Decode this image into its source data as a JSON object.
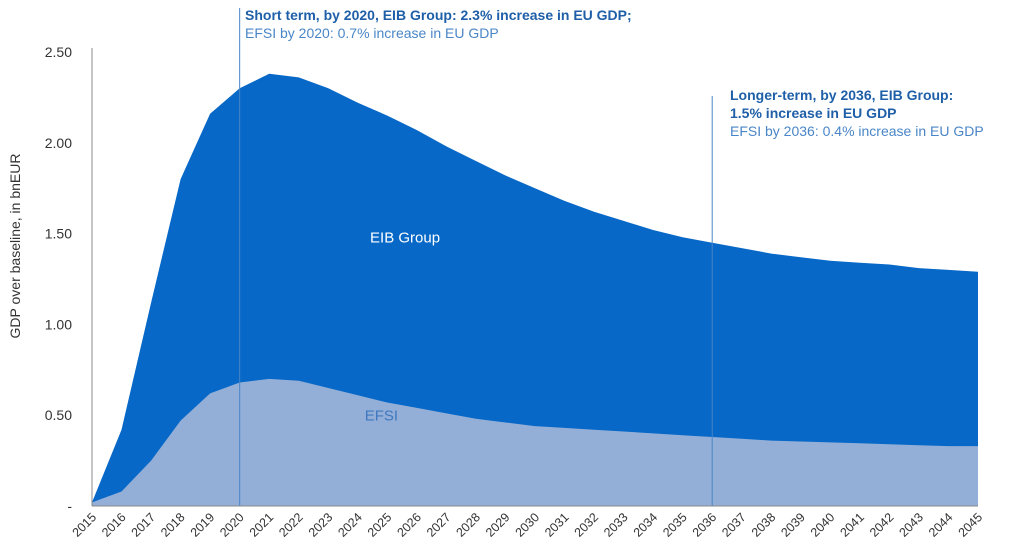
{
  "chart_data": {
    "type": "area",
    "stacked": true,
    "x": [
      2015,
      2016,
      2017,
      2018,
      2019,
      2020,
      2021,
      2022,
      2023,
      2024,
      2025,
      2026,
      2027,
      2028,
      2029,
      2030,
      2031,
      2032,
      2033,
      2034,
      2035,
      2036,
      2037,
      2038,
      2039,
      2040,
      2041,
      2042,
      2043,
      2044,
      2045
    ],
    "series": [
      {
        "name": "EFSI",
        "color": "#93afd7",
        "values": [
          0.02,
          0.08,
          0.25,
          0.47,
          0.62,
          0.68,
          0.7,
          0.69,
          0.65,
          0.61,
          0.57,
          0.54,
          0.51,
          0.48,
          0.46,
          0.44,
          0.43,
          0.42,
          0.41,
          0.4,
          0.39,
          0.38,
          0.37,
          0.36,
          0.355,
          0.35,
          0.345,
          0.34,
          0.335,
          0.33,
          0.33
        ]
      },
      {
        "name": "EIB Group",
        "color": "#0768c7",
        "values_total": [
          0.02,
          0.42,
          1.12,
          1.8,
          2.16,
          2.3,
          2.38,
          2.36,
          2.3,
          2.22,
          2.15,
          2.07,
          1.98,
          1.9,
          1.82,
          1.75,
          1.68,
          1.62,
          1.57,
          1.52,
          1.48,
          1.45,
          1.42,
          1.39,
          1.37,
          1.35,
          1.34,
          1.33,
          1.31,
          1.3,
          1.29
        ]
      }
    ],
    "ylabel": "GDP over baseline, in bnEUR",
    "ylim": [
      0,
      2.5
    ],
    "yticks": [
      {
        "value": 0,
        "label": "-"
      },
      {
        "value": 0.5,
        "label": "0.50"
      },
      {
        "value": 1.0,
        "label": "1.00"
      },
      {
        "value": 1.5,
        "label": "1.50"
      },
      {
        "value": 2.0,
        "label": "2.00"
      },
      {
        "value": 2.5,
        "label": "2.50"
      }
    ],
    "xtick_labels": [
      "2015",
      "2016",
      "2017",
      "2018",
      "2019",
      "2020",
      "2021",
      "2022",
      "2023",
      "2024",
      "2025",
      "2026",
      "2027",
      "2028",
      "2029",
      "2030",
      "2031",
      "2032",
      "2033",
      "2034",
      "2035",
      "2036",
      "2037",
      "2038",
      "2039",
      "2040",
      "2041",
      "2042",
      "2043",
      "2044",
      "2045"
    ],
    "series_labels": {
      "eib": "EIB Group",
      "efsi": "EFSI"
    },
    "markers": [
      2020,
      2036
    ],
    "grid": false,
    "legend": "none"
  },
  "annotations": {
    "short_strong": "Short term, by 2020, EIB Group: 2.3% increase in EU GDP;",
    "short_light": "EFSI by 2020: 0.7% increase in EU GDP",
    "long_strong_1": "Longer-term, by 2036, EIB Group:",
    "long_strong_2": "1.5% increase in EU GDP",
    "long_light": "EFSI by 2036: 0.4% increase in EU GDP"
  },
  "colors": {
    "eib": "#0768c7",
    "efsi": "#93afd7",
    "annotation_strong": "#1e5fa8",
    "annotation_light": "#4a86c7",
    "marker_line": "#4a86c7"
  }
}
